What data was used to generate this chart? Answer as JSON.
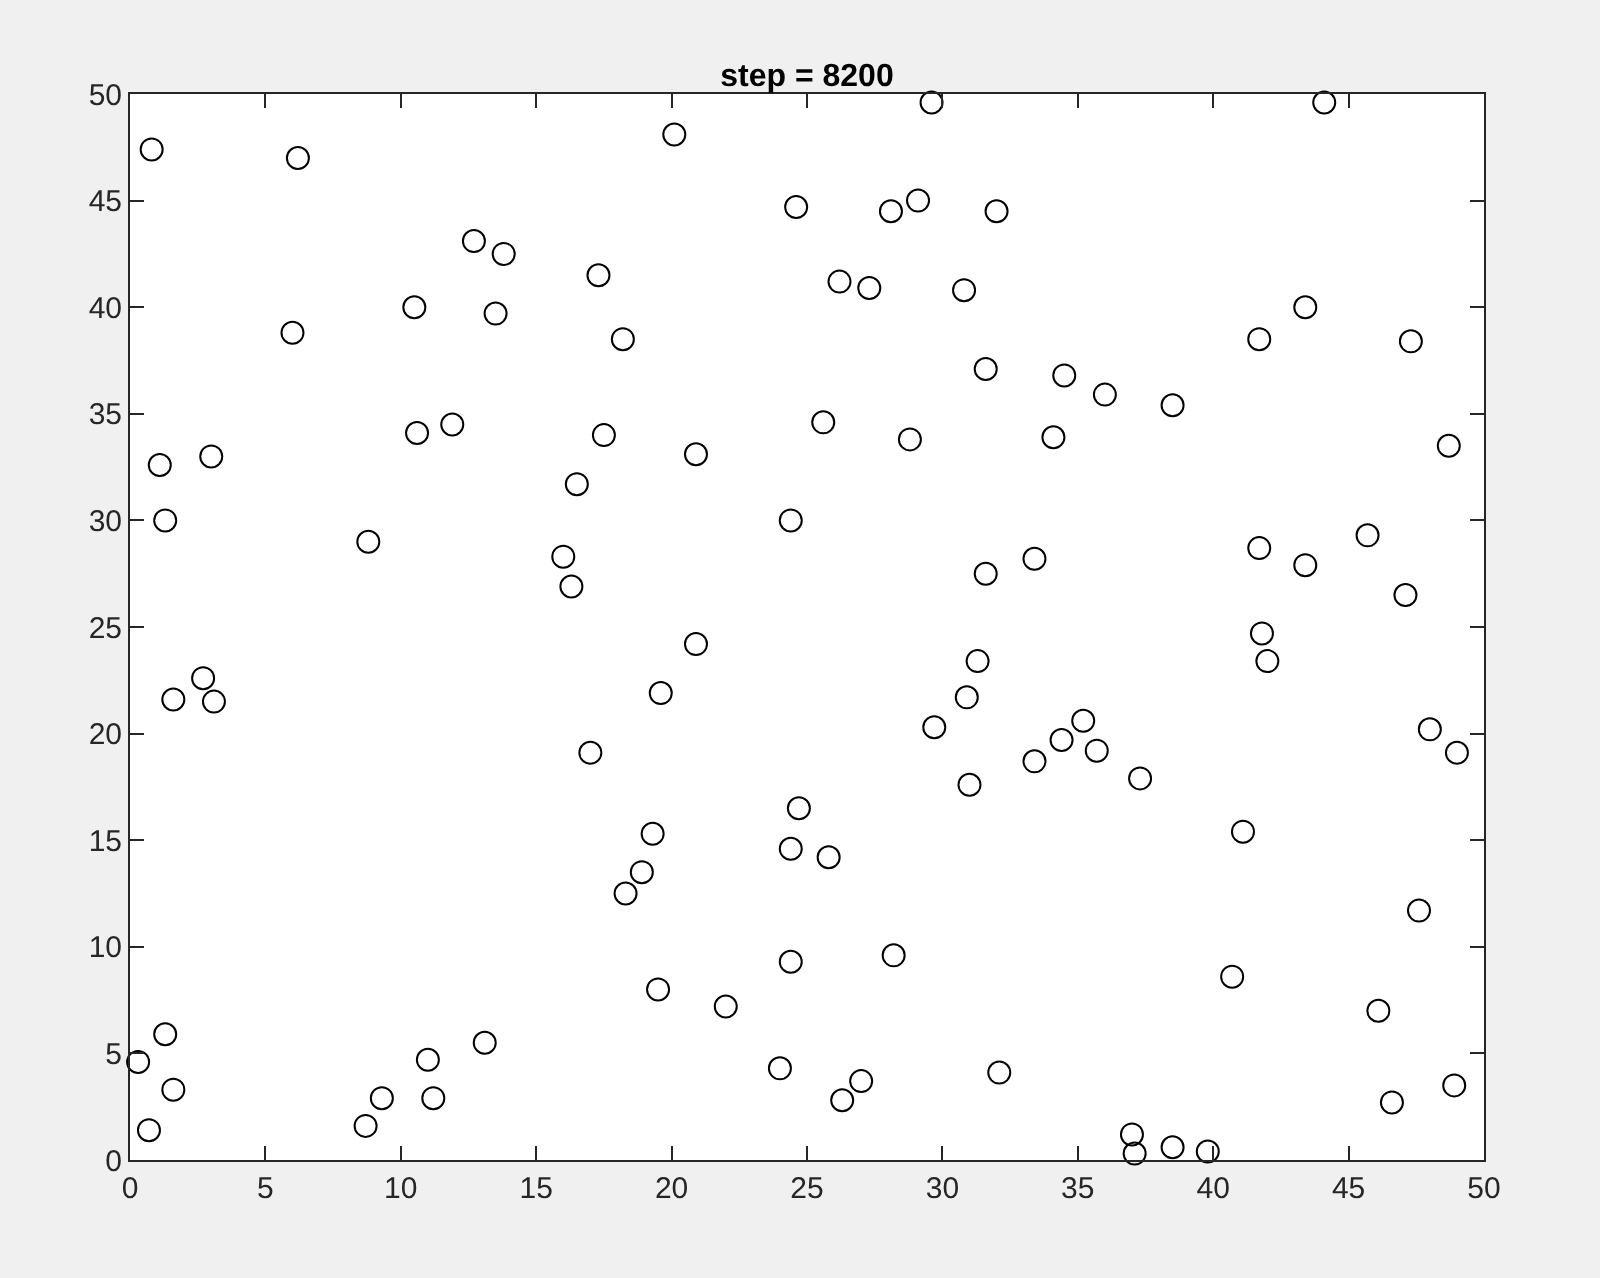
{
  "chart_data": {
    "type": "scatter",
    "title": "step = 8200",
    "xlim": [
      0,
      50
    ],
    "ylim": [
      0,
      50
    ],
    "xticks": [
      0,
      5,
      10,
      15,
      20,
      25,
      30,
      35,
      40,
      45,
      50
    ],
    "yticks": [
      0,
      5,
      10,
      15,
      20,
      25,
      30,
      35,
      40,
      45,
      50
    ],
    "marker": "circle",
    "series": [
      {
        "color": "#000000",
        "x": [
          0.8,
          6.2,
          20.1,
          29.6,
          44.1,
          6.0,
          10.5,
          12.7,
          13.8,
          13.5,
          17.3,
          18.2,
          24.6,
          26.2,
          27.3,
          28.1,
          29.1,
          32.0,
          30.8,
          1.1,
          3.0,
          1.3,
          10.6,
          11.9,
          17.5,
          16.5,
          20.9,
          25.6,
          28.8,
          31.6,
          34.5,
          36.0,
          38.5,
          34.1,
          41.7,
          43.4,
          47.3,
          48.7,
          8.8,
          16.0,
          16.3,
          24.4,
          31.6,
          33.4,
          41.7,
          43.4,
          45.7,
          47.1,
          41.8,
          42.0,
          31.3,
          2.7,
          3.1,
          1.6,
          20.9,
          19.6,
          17.0,
          30.9,
          29.7,
          35.2,
          34.4,
          35.7,
          33.4,
          31.0,
          37.3,
          48.0,
          49.0,
          24.7,
          19.3,
          24.4,
          25.8,
          18.9,
          18.3,
          41.1,
          47.6,
          19.5,
          24.4,
          28.2,
          22.0,
          46.1,
          40.7,
          0.3,
          1.3,
          1.6,
          0.7,
          11.0,
          13.1,
          9.3,
          11.2,
          8.7,
          24.0,
          27.0,
          26.3,
          32.1,
          37.0,
          37.1,
          38.5,
          39.8,
          46.6,
          48.9
        ],
        "values": [
          47.4,
          47.0,
          48.1,
          49.6,
          49.6,
          38.8,
          40.0,
          43.1,
          42.5,
          39.7,
          41.5,
          38.5,
          44.7,
          41.2,
          40.9,
          44.5,
          45.0,
          44.5,
          40.8,
          32.6,
          33.0,
          30.0,
          34.1,
          34.5,
          34.0,
          31.7,
          33.1,
          34.6,
          33.8,
          37.1,
          36.8,
          35.9,
          35.4,
          33.9,
          38.5,
          40.0,
          38.4,
          33.5,
          29.0,
          28.3,
          26.9,
          30.0,
          27.5,
          28.2,
          28.7,
          27.9,
          29.3,
          26.5,
          24.7,
          23.4,
          23.4,
          22.6,
          21.5,
          21.6,
          24.2,
          21.9,
          19.1,
          21.7,
          20.3,
          20.6,
          19.7,
          19.2,
          18.7,
          17.6,
          17.9,
          20.2,
          19.1,
          16.5,
          15.3,
          14.6,
          14.2,
          13.5,
          12.5,
          15.4,
          11.7,
          8.0,
          9.3,
          9.6,
          7.2,
          7.0,
          8.6,
          4.6,
          5.9,
          3.3,
          1.4,
          4.7,
          5.5,
          2.9,
          2.9,
          1.6,
          4.3,
          3.7,
          2.8,
          4.1,
          1.2,
          0.3,
          0.6,
          0.4,
          2.7,
          3.5
        ]
      }
    ]
  }
}
